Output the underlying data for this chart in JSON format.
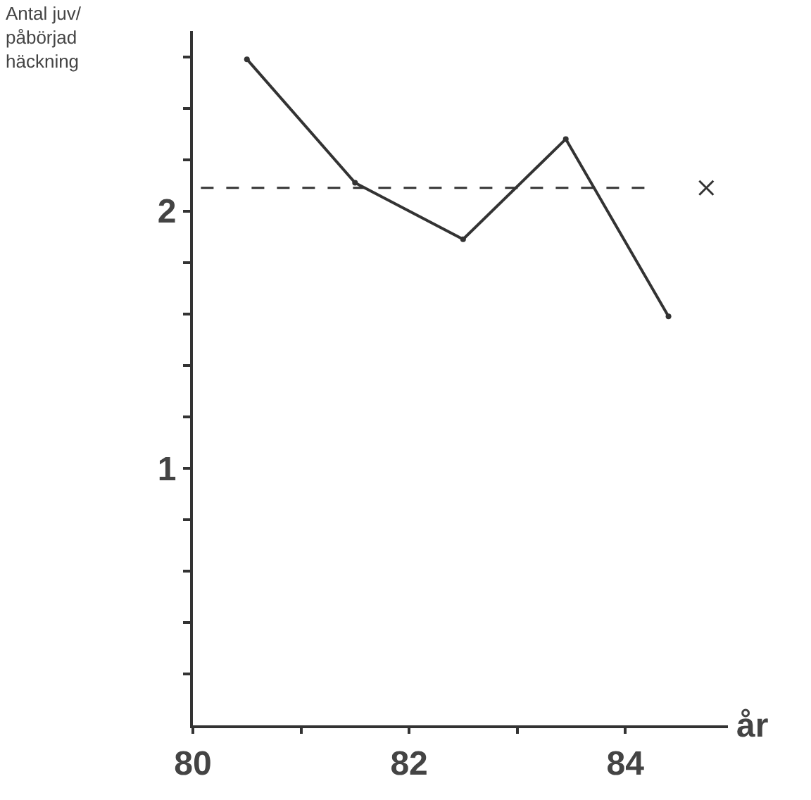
{
  "chart_data": {
    "type": "line",
    "xlabel": "år",
    "ylabel": "Antal juv/\npåbörjad\nhäckning",
    "xlim": [
      80,
      84.95
    ],
    "xticks": [
      80,
      {
        "value": 81,
        "label": null
      },
      82,
      {
        "value": 83,
        "label": null
      },
      84
    ],
    "ylim": [
      0,
      2.7
    ],
    "yticks": [
      {
        "value": 0.2,
        "label": null
      },
      {
        "value": 0.4,
        "label": null
      },
      {
        "value": 0.6,
        "label": null
      },
      {
        "value": 0.8,
        "label": null
      },
      1,
      {
        "value": 1.2,
        "label": null
      },
      {
        "value": 1.4,
        "label": null
      },
      {
        "value": 1.6,
        "label": null
      },
      {
        "value": 1.8,
        "label": null
      },
      2,
      {
        "value": 2.2,
        "label": null
      },
      {
        "value": 2.4,
        "label": null
      },
      {
        "value": 2.6,
        "label": null
      }
    ],
    "series": [
      {
        "color": "#333333",
        "marker": "circle",
        "x": [
          80.5,
          81.5,
          82.5,
          83.45,
          84.4
        ],
        "values": [
          2.59,
          2.11,
          1.89,
          2.28,
          1.59
        ]
      },
      {
        "type": "scatter",
        "color": "#333333",
        "marker": "cross",
        "x": [
          84.75
        ],
        "values": [
          2.09
        ]
      }
    ],
    "ref_lines": [
      {
        "axis": "y",
        "value": 2.09,
        "color": "#333333",
        "line_style": "dashed"
      }
    ],
    "line_style": "solid"
  }
}
